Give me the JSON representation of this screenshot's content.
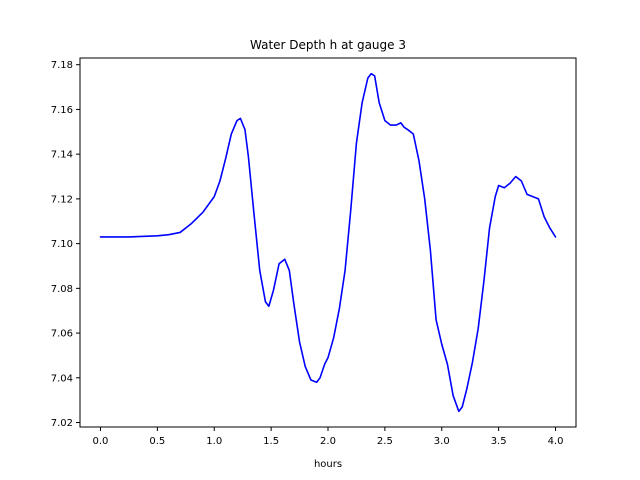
{
  "chart_data": {
    "type": "line",
    "title": "Water Depth h at gauge 3",
    "xlabel": "hours",
    "ylabel": "",
    "xlim": [
      -0.18,
      4.18
    ],
    "ylim": [
      7.018,
      7.183
    ],
    "xticks": [
      0.0,
      0.5,
      1.0,
      1.5,
      2.0,
      2.5,
      3.0,
      3.5,
      4.0
    ],
    "xtick_labels": [
      "0.0",
      "0.5",
      "1.0",
      "1.5",
      "2.0",
      "2.5",
      "3.0",
      "3.5",
      "4.0"
    ],
    "yticks": [
      7.02,
      7.04,
      7.06,
      7.08,
      7.1,
      7.12,
      7.14,
      7.16,
      7.18
    ],
    "ytick_labels": [
      "7.02",
      "7.04",
      "7.06",
      "7.08",
      "7.10",
      "7.12",
      "7.14",
      "7.16",
      "7.18"
    ],
    "grid": false,
    "series": [
      {
        "color": "#0000ff",
        "x": [
          0.0,
          0.25,
          0.5,
          0.6,
          0.7,
          0.8,
          0.9,
          1.0,
          1.05,
          1.1,
          1.15,
          1.2,
          1.23,
          1.27,
          1.3,
          1.35,
          1.4,
          1.45,
          1.48,
          1.52,
          1.57,
          1.62,
          1.66,
          1.7,
          1.75,
          1.8,
          1.85,
          1.9,
          1.93,
          1.97,
          2.0,
          2.05,
          2.1,
          2.15,
          2.2,
          2.25,
          2.3,
          2.35,
          2.38,
          2.41,
          2.45,
          2.5,
          2.55,
          2.6,
          2.64,
          2.67,
          2.7,
          2.75,
          2.8,
          2.85,
          2.9,
          2.95,
          3.0,
          3.05,
          3.1,
          3.15,
          3.18,
          3.22,
          3.27,
          3.32,
          3.37,
          3.42,
          3.47,
          3.5,
          3.55,
          3.6,
          3.65,
          3.7,
          3.75,
          3.8,
          3.85,
          3.9,
          3.95,
          4.0
        ],
        "y": [
          7.103,
          7.103,
          7.1035,
          7.104,
          7.105,
          7.109,
          7.114,
          7.121,
          7.128,
          7.138,
          7.149,
          7.155,
          7.156,
          7.151,
          7.139,
          7.113,
          7.088,
          7.074,
          7.072,
          7.079,
          7.091,
          7.093,
          7.088,
          7.073,
          7.056,
          7.045,
          7.039,
          7.038,
          7.04,
          7.046,
          7.049,
          7.058,
          7.071,
          7.088,
          7.115,
          7.145,
          7.163,
          7.174,
          7.176,
          7.175,
          7.163,
          7.155,
          7.153,
          7.153,
          7.154,
          7.152,
          7.151,
          7.149,
          7.137,
          7.12,
          7.097,
          7.066,
          7.055,
          7.046,
          7.032,
          7.025,
          7.027,
          7.035,
          7.047,
          7.062,
          7.083,
          7.107,
          7.121,
          7.126,
          7.125,
          7.127,
          7.13,
          7.128,
          7.122,
          7.121,
          7.12,
          7.112,
          7.107,
          7.103
        ]
      }
    ]
  }
}
